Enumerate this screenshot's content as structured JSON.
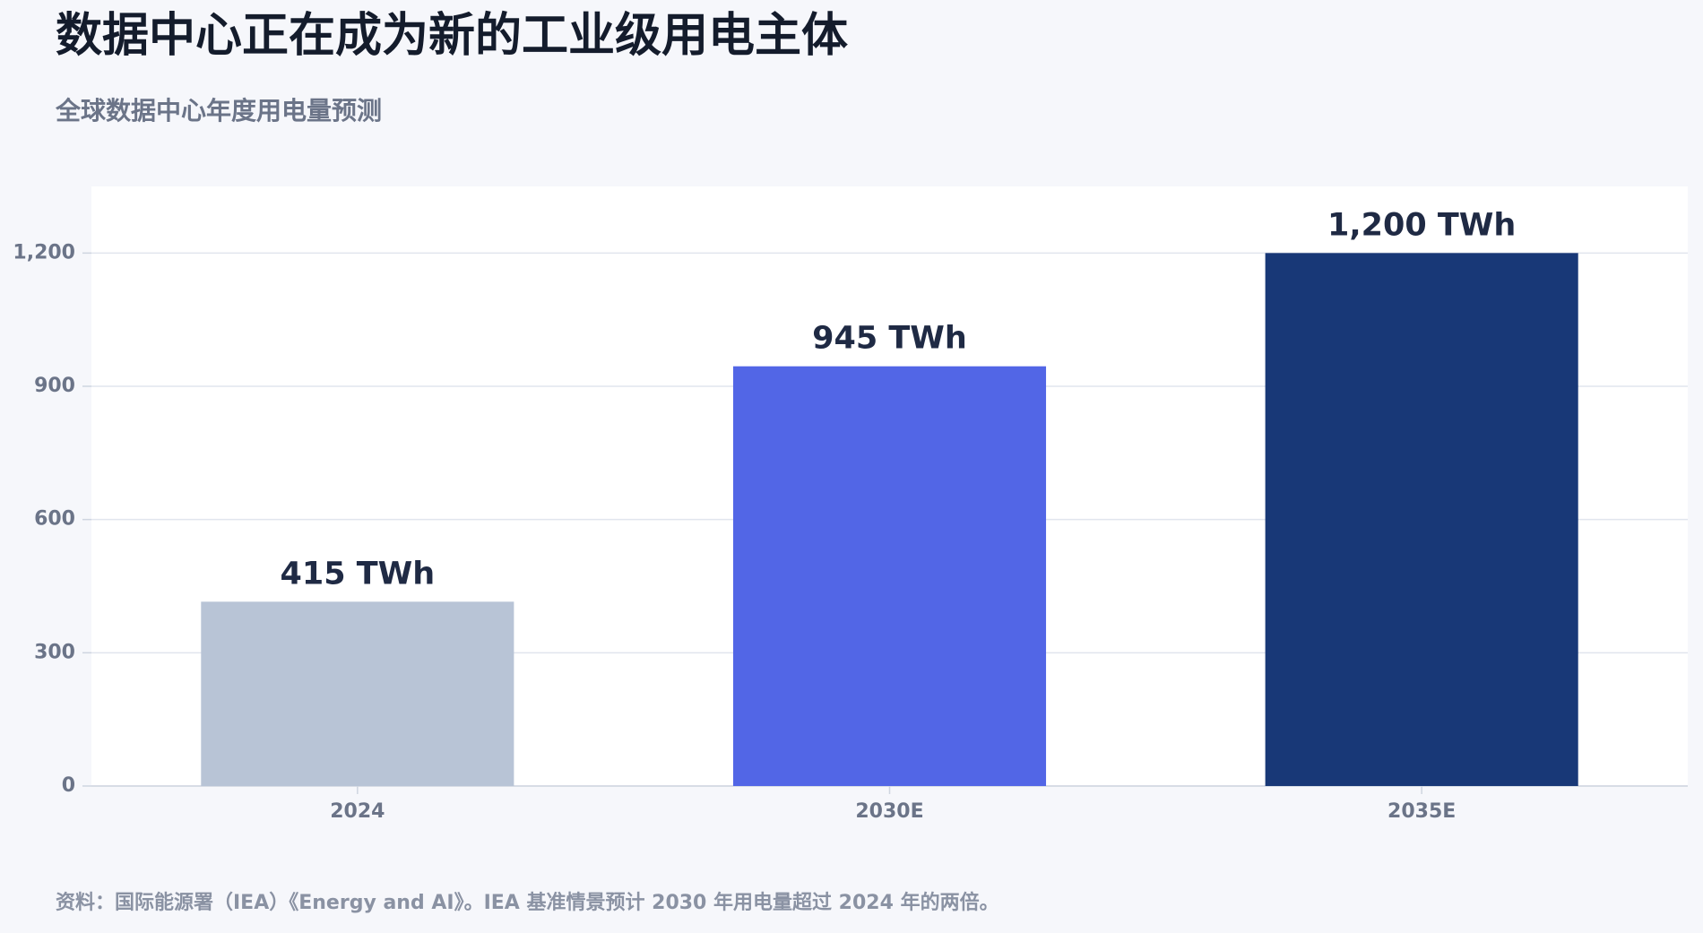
{
  "chart_data": {
    "type": "bar",
    "title": "数据中心正在成为新的工业级用电主体",
    "subtitle": "全球数据中心年度用电量预测",
    "source": "资料：国际能源署（IEA）《Energy and AI》。IEA 基准情景预计 2030 年用电量超过 2024 年的两倍。",
    "categories": [
      "2024",
      "2030E",
      "2035E"
    ],
    "values": [
      415,
      945,
      1200
    ],
    "value_labels": [
      "415 TWh",
      "945 TWh",
      "1,200 TWh"
    ],
    "colors": [
      "#b8c4d6",
      "#5266e6",
      "#183877"
    ],
    "ylim": [
      0,
      1350
    ],
    "yticks": [
      0,
      300,
      600,
      900,
      {
        "value": 1200,
        "label": "1,200"
      }
    ],
    "grid": true
  }
}
